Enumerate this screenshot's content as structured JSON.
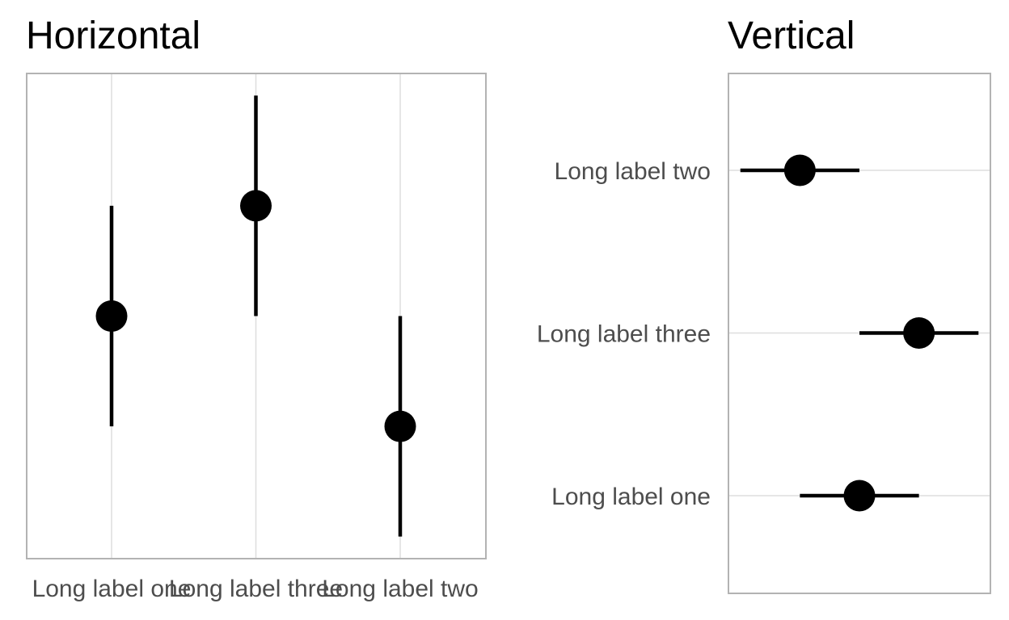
{
  "chart_data": [
    {
      "type": "scatter",
      "title": "Horizontal",
      "orientation": "vertical-error-bars",
      "categories": [
        "Long label one",
        "Long label three",
        "Long label two"
      ],
      "values": [
        0.0,
        1.0,
        -1.0
      ],
      "lower": [
        -1.0,
        0.0,
        -2.0
      ],
      "upper": [
        1.0,
        2.0,
        0.0
      ],
      "ylim": [
        -2.2,
        2.2
      ],
      "xlabel": "",
      "ylabel": "",
      "grid": "major-x",
      "colors": {
        "marks": "#000000",
        "grid": "#dedede",
        "border": "#b3b3b3",
        "text": "#4d4d4d"
      }
    },
    {
      "type": "scatter",
      "title": "Vertical",
      "orientation": "horizontal-error-bars",
      "categories": [
        "Long label one",
        "Long label three",
        "Long label two"
      ],
      "values": [
        0.0,
        1.0,
        -1.0
      ],
      "lower": [
        -1.0,
        0.0,
        -2.0
      ],
      "upper": [
        1.0,
        2.0,
        0.0
      ],
      "xlim": [
        -2.2,
        2.2
      ],
      "xlabel": "",
      "ylabel": "",
      "grid": "major-y",
      "colors": {
        "marks": "#000000",
        "grid": "#dedede",
        "border": "#b3b3b3",
        "text": "#4d4d4d"
      }
    }
  ]
}
